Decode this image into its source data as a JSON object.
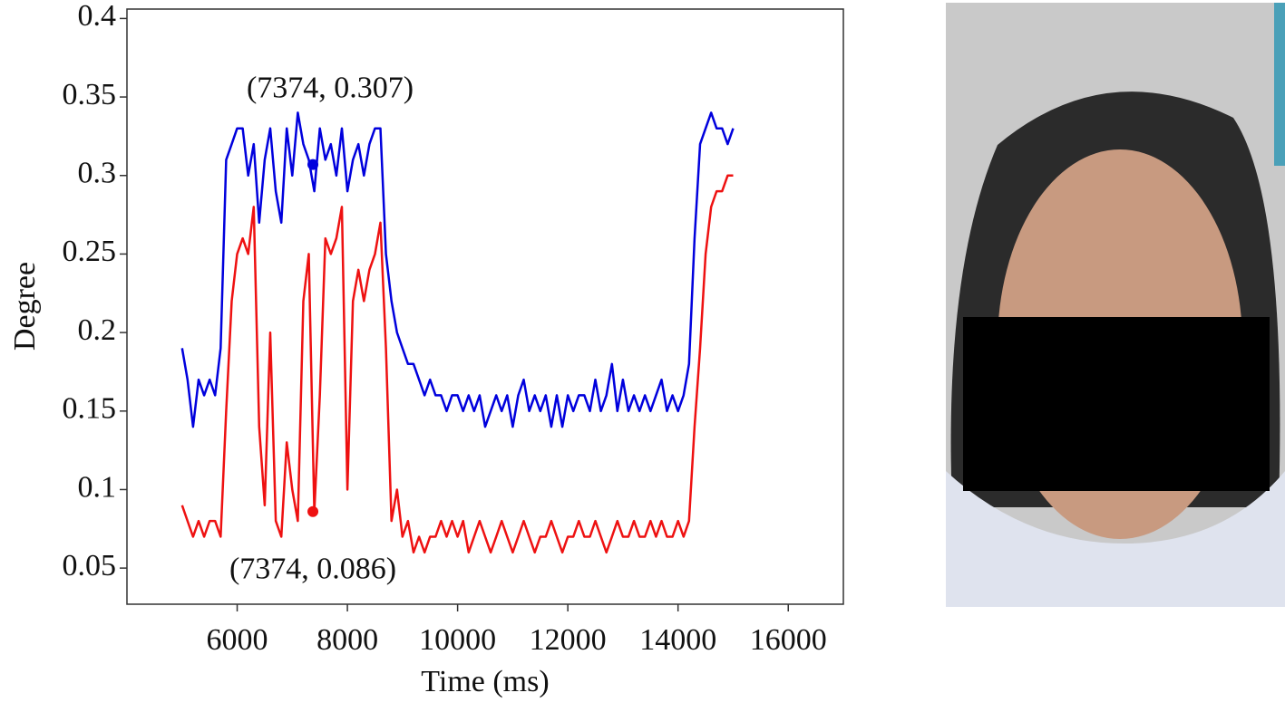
{
  "chart_data": {
    "type": "line",
    "x_label": "Time (ms)",
    "y_label": "Degree",
    "x": [
      5000,
      5100,
      5200,
      5300,
      5400,
      5500,
      5600,
      5700,
      5800,
      5900,
      6000,
      6100,
      6200,
      6300,
      6400,
      6500,
      6600,
      6700,
      6800,
      6900,
      7000,
      7100,
      7200,
      7300,
      7400,
      7500,
      7600,
      7700,
      7800,
      7900,
      8000,
      8100,
      8200,
      8300,
      8400,
      8500,
      8600,
      8700,
      8800,
      8900,
      9000,
      9100,
      9200,
      9300,
      9400,
      9500,
      9600,
      9700,
      9800,
      9900,
      10000,
      10100,
      10200,
      10300,
      10400,
      10500,
      10600,
      10700,
      10800,
      10900,
      11000,
      11100,
      11200,
      11300,
      11400,
      11500,
      11600,
      11700,
      11800,
      11900,
      12000,
      12100,
      12200,
      12300,
      12400,
      12500,
      12600,
      12700,
      12800,
      12900,
      13000,
      13100,
      13200,
      13300,
      13400,
      13500,
      13600,
      13700,
      13800,
      13900,
      14000,
      14100,
      14200,
      14300,
      14400,
      14500,
      14600,
      14700,
      14800,
      14900,
      15000
    ],
    "series": [
      {
        "color": "#0000dd",
        "values": [
          0.19,
          0.17,
          0.14,
          0.17,
          0.16,
          0.17,
          0.16,
          0.19,
          0.31,
          0.32,
          0.33,
          0.33,
          0.3,
          0.32,
          0.27,
          0.31,
          0.33,
          0.29,
          0.27,
          0.33,
          0.3,
          0.34,
          0.32,
          0.31,
          0.29,
          0.33,
          0.31,
          0.32,
          0.3,
          0.33,
          0.29,
          0.31,
          0.32,
          0.3,
          0.32,
          0.33,
          0.33,
          0.25,
          0.22,
          0.2,
          0.19,
          0.18,
          0.18,
          0.17,
          0.16,
          0.17,
          0.16,
          0.16,
          0.15,
          0.16,
          0.16,
          0.15,
          0.16,
          0.15,
          0.16,
          0.14,
          0.15,
          0.16,
          0.15,
          0.16,
          0.14,
          0.16,
          0.17,
          0.15,
          0.16,
          0.15,
          0.16,
          0.14,
          0.16,
          0.14,
          0.16,
          0.15,
          0.16,
          0.16,
          0.15,
          0.17,
          0.15,
          0.16,
          0.18,
          0.15,
          0.17,
          0.15,
          0.16,
          0.15,
          0.16,
          0.15,
          0.16,
          0.17,
          0.15,
          0.16,
          0.15,
          0.16,
          0.18,
          0.26,
          0.32,
          0.33,
          0.34,
          0.33,
          0.33,
          0.32,
          0.33
        ]
      },
      {
        "color": "#ee1111",
        "values": [
          0.09,
          0.08,
          0.07,
          0.08,
          0.07,
          0.08,
          0.08,
          0.07,
          0.15,
          0.22,
          0.25,
          0.26,
          0.25,
          0.28,
          0.14,
          0.09,
          0.2,
          0.08,
          0.07,
          0.13,
          0.1,
          0.08,
          0.22,
          0.25,
          0.086,
          0.16,
          0.26,
          0.25,
          0.26,
          0.28,
          0.1,
          0.22,
          0.24,
          0.22,
          0.24,
          0.25,
          0.27,
          0.19,
          0.08,
          0.1,
          0.07,
          0.08,
          0.06,
          0.07,
          0.06,
          0.07,
          0.07,
          0.08,
          0.07,
          0.08,
          0.07,
          0.08,
          0.06,
          0.07,
          0.08,
          0.07,
          0.06,
          0.07,
          0.08,
          0.07,
          0.06,
          0.07,
          0.08,
          0.07,
          0.06,
          0.07,
          0.07,
          0.08,
          0.07,
          0.06,
          0.07,
          0.07,
          0.08,
          0.07,
          0.07,
          0.08,
          0.07,
          0.06,
          0.07,
          0.08,
          0.07,
          0.07,
          0.08,
          0.07,
          0.07,
          0.08,
          0.07,
          0.08,
          0.07,
          0.07,
          0.08,
          0.07,
          0.08,
          0.14,
          0.19,
          0.25,
          0.28,
          0.29,
          0.29,
          0.3,
          0.3
        ]
      }
    ],
    "annotations": [
      {
        "text": "(7374, 0.307)",
        "x": 7374,
        "y": 0.307,
        "color": "#0000dd"
      },
      {
        "text": "(7374, 0.086)",
        "x": 7374,
        "y": 0.086,
        "color": "#ee1111"
      }
    ],
    "xlim": [
      4000,
      17000
    ],
    "ylim": [
      0.027,
      0.406
    ],
    "xticks": [
      6000,
      8000,
      10000,
      12000,
      14000,
      16000
    ],
    "yticks": [
      0.05,
      0.1,
      0.15,
      0.2,
      0.25,
      0.3,
      0.35,
      0.4
    ]
  }
}
